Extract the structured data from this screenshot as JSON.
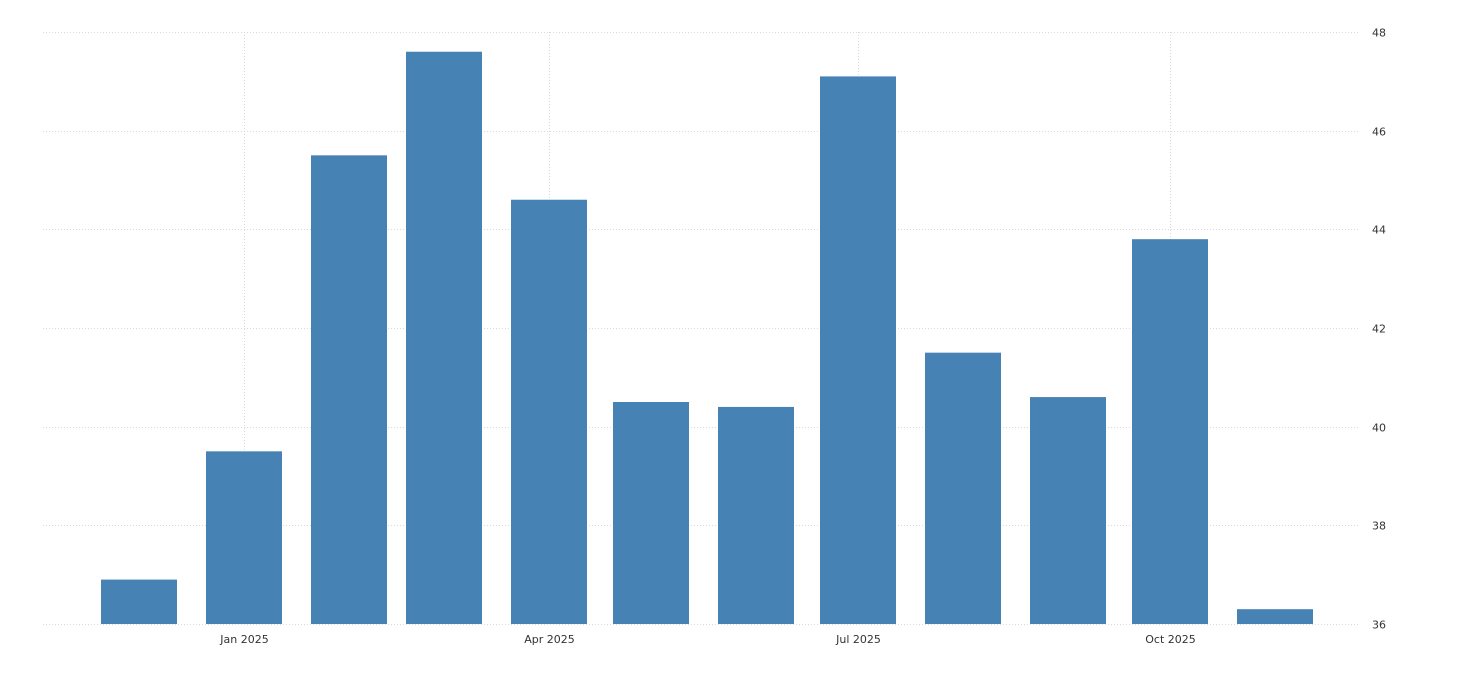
{
  "chart_data": {
    "type": "bar",
    "categories": [
      "2024-12",
      "2025-01",
      "2025-02",
      "2025-03",
      "2025-04",
      "2025-05",
      "2025-06",
      "2025-07",
      "2025-08",
      "2025-09",
      "2025-10",
      "2025-11"
    ],
    "values": [
      36.9,
      39.5,
      45.5,
      47.6,
      44.6,
      40.5,
      40.4,
      47.1,
      41.5,
      40.6,
      43.8,
      36.3
    ],
    "x_tick_labels": [
      {
        "label": "Jan 2025",
        "category": "2025-01"
      },
      {
        "label": "Apr 2025",
        "category": "2025-04"
      },
      {
        "label": "Jul 2025",
        "category": "2025-07"
      },
      {
        "label": "Oct 2025",
        "category": "2025-10"
      }
    ],
    "y_ticks": [
      "36",
      "38",
      "40",
      "42",
      "44",
      "46",
      "48"
    ],
    "ylim": [
      36,
      48
    ],
    "y_axis_side": "right",
    "grid": true,
    "title": "",
    "xlabel": "",
    "ylabel": "",
    "bar_color": "#4682b4"
  }
}
